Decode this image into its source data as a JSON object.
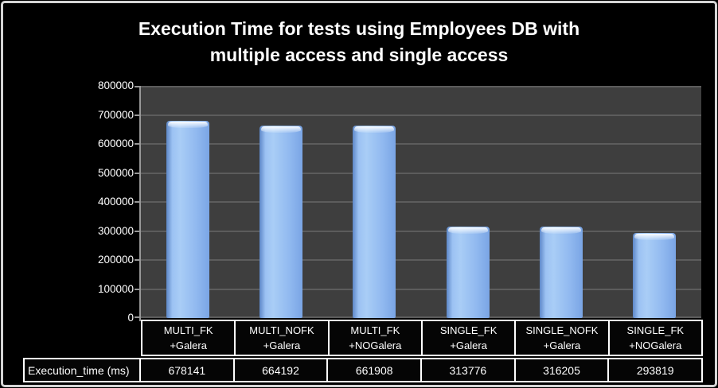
{
  "chart_data": {
    "type": "bar",
    "title": "Execution Time for tests using Employees DB with multiple access and single access",
    "title_lines": [
      "Execution Time for tests using Employees DB with",
      "multiple access and single access"
    ],
    "categories": [
      "MULTI_FK +Galera",
      "MULTI_NOFK +Galera",
      "MULTI_FK +NOGalera",
      "SINGLE_FK +Galera",
      "SINGLE_NOFK +Galera",
      "SINGLE_FK +NOGalera"
    ],
    "category_lines": [
      [
        "MULTI_FK",
        "+Galera"
      ],
      [
        "MULTI_NOFK",
        "+Galera"
      ],
      [
        "MULTI_FK",
        "+NOGalera"
      ],
      [
        "SINGLE_FK",
        "+Galera"
      ],
      [
        "SINGLE_NOFK",
        "+Galera"
      ],
      [
        "SINGLE_FK",
        "+NOGalera"
      ]
    ],
    "series": [
      {
        "name": "Execution_time (ms)",
        "values": [
          678141,
          664192,
          661908,
          313776,
          316205,
          293819
        ]
      }
    ],
    "data_table_row_label": "Execution_time (ms)",
    "ylim": [
      0,
      800000
    ],
    "ytick_step": 100000,
    "ytick_labels": [
      "0",
      "100000",
      "200000",
      "300000",
      "400000",
      "500000",
      "600000",
      "700000",
      "800000"
    ],
    "grid": true,
    "legend_position": "data-table-left",
    "colors": {
      "background": "#000000",
      "frame_border": "#d4d4d4",
      "plot_bg": "#3e3e3e",
      "gridline": "#5c5c5c",
      "axis": "#989898",
      "text": "#ffffff",
      "table_border": "#ffffff",
      "bar_face": "#9cc2f3",
      "bar_edge": "#5d87c7",
      "bar_highlight": "#e8f3fe"
    }
  }
}
